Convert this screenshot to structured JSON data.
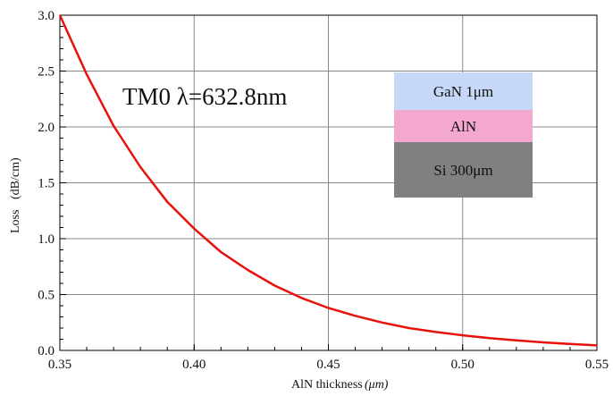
{
  "chart_data": {
    "type": "line",
    "title": "",
    "xlabel": "AlN thickness",
    "xlabel_unit": "(μm)",
    "ylabel": "Loss",
    "ylabel_unit": "(dB/cm)",
    "xlim": [
      0.35,
      0.55
    ],
    "ylim": [
      0.0,
      3.0
    ],
    "xticks": [
      "0.35",
      "0.40",
      "0.45",
      "0.50",
      "0.55"
    ],
    "yticks": [
      "0.0",
      "0.5",
      "1.0",
      "1.5",
      "2.0",
      "2.5",
      "3.0"
    ],
    "grid": true,
    "line_color": "#e8120c",
    "series": [
      {
        "x": [
          0.35,
          0.36,
          0.37,
          0.38,
          0.39,
          0.4,
          0.41,
          0.42,
          0.43,
          0.44,
          0.45,
          0.46,
          0.47,
          0.48,
          0.49,
          0.5,
          0.51,
          0.52,
          0.53,
          0.54,
          0.55
        ],
        "values": [
          3.0,
          2.47,
          2.01,
          1.64,
          1.33,
          1.09,
          0.88,
          0.72,
          0.58,
          0.47,
          0.38,
          0.31,
          0.25,
          0.2,
          0.165,
          0.135,
          0.11,
          0.09,
          0.072,
          0.058,
          0.045
        ]
      }
    ],
    "annotation": "TM0  λ=632.8nm"
  },
  "layer_stack": {
    "layers": [
      {
        "label": "GaN 1μm",
        "color": "#c6d8f7"
      },
      {
        "label": "AlN",
        "color": "#f4a8cf"
      },
      {
        "label": "Si 300μm",
        "color": "#808080"
      }
    ]
  }
}
